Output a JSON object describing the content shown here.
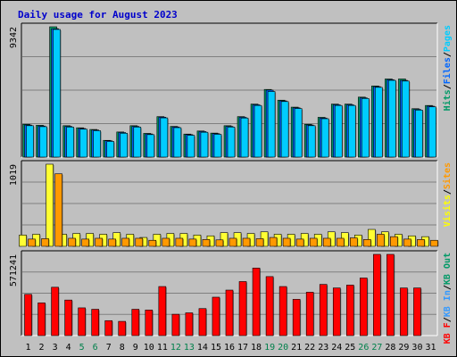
{
  "chart_data": {
    "type": "bar",
    "title": "Daily usage for August 2023",
    "categories": [
      "1",
      "2",
      "3",
      "4",
      "5",
      "6",
      "7",
      "8",
      "9",
      "10",
      "11",
      "12",
      "13",
      "14",
      "15",
      "16",
      "17",
      "18",
      "19",
      "20",
      "21",
      "22",
      "23",
      "24",
      "25",
      "26",
      "27",
      "28",
      "29",
      "30",
      "31"
    ],
    "weekend_days": [
      "5",
      "6",
      "12",
      "13",
      "19",
      "20",
      "26",
      "27"
    ],
    "panels": [
      {
        "id": "hits-files-pages",
        "ymax_label": "9342",
        "ylim": [
          0,
          9342
        ],
        "right_labels": [
          {
            "text": "Hits",
            "color": "#009966"
          },
          {
            "text": "/",
            "color": "#000000"
          },
          {
            "text": "Files",
            "color": "#0066ff"
          },
          {
            "text": "/",
            "color": "#000000"
          },
          {
            "text": "Pages",
            "color": "#00ccff"
          }
        ],
        "series": [
          {
            "name": "Hits",
            "color": "#009966",
            "values": [
              2350,
              2280,
              9342,
              2250,
              2100,
              1980,
              1200,
              1800,
              2250,
              1700,
              2900,
              2200,
              1650,
              1870,
              1720,
              2250,
              2900,
              3800,
              4850,
              4080,
              3580,
              2350,
              2850,
              3800,
              3800,
              4300,
              5100,
              5600,
              5600,
              3470,
              3700
            ]
          },
          {
            "name": "Files",
            "color": "#0066ff",
            "values": [
              2300,
              2230,
              9200,
              2200,
              2050,
              1940,
              1170,
              1760,
              2200,
              1660,
              2860,
              2160,
              1610,
              1830,
              1680,
              2200,
              2850,
              3750,
              4800,
              4030,
              3530,
              2300,
              2800,
              3750,
              3750,
              4250,
              5050,
              5550,
              5500,
              3420,
              3650
            ]
          },
          {
            "name": "Pages",
            "color": "#00ccff",
            "values": [
              2250,
              2180,
              9150,
              2150,
              2000,
              1890,
              1120,
              1710,
              2150,
              1610,
              2810,
              2110,
              1560,
              1780,
              1630,
              2150,
              2800,
              3700,
              4700,
              3980,
              3480,
              2250,
              2750,
              3700,
              3700,
              4200,
              5000,
              5500,
              5450,
              3370,
              3600
            ]
          }
        ]
      },
      {
        "id": "visits-sites",
        "ymax_label": "1019",
        "ylim": [
          0,
          1019
        ],
        "right_labels": [
          {
            "text": "Visits",
            "color": "#ffff00"
          },
          {
            "text": "/",
            "color": "#000000"
          },
          {
            "text": "Sites",
            "color": "#ff9900"
          }
        ],
        "series": [
          {
            "name": "Visits",
            "color": "#ffff33",
            "values": [
              140,
              150,
              1019,
              150,
              160,
              160,
              150,
              170,
              150,
              110,
              150,
              160,
              160,
              140,
              130,
              170,
              170,
              160,
              180,
              150,
              150,
              160,
              150,
              180,
              170,
              140,
              210,
              180,
              150,
              130,
              120
            ]
          },
          {
            "name": "Sites",
            "color": "#ff9900",
            "values": [
              90,
              95,
              900,
              100,
              90,
              100,
              90,
              100,
              100,
              75,
              100,
              100,
              90,
              85,
              80,
              100,
              100,
              95,
              110,
              100,
              90,
              100,
              100,
              100,
              105,
              85,
              150,
              120,
              90,
              85,
              75
            ]
          }
        ]
      },
      {
        "id": "kb",
        "ymax_label": "571241",
        "ylim": [
          0,
          571241
        ],
        "right_labels": [
          {
            "text": "KB F",
            "color": "#ff0000"
          },
          {
            "text": "/",
            "color": "#000000"
          },
          {
            "text": "KB In",
            "color": "#3399ff"
          },
          {
            "text": "/",
            "color": "#000000"
          },
          {
            "text": "KB Out",
            "color": "#009966"
          }
        ],
        "series": [
          {
            "name": "KB F",
            "color": "#ff0000",
            "values": [
              290000,
              230000,
              340000,
              250000,
              195000,
              185000,
              105000,
              100000,
              185000,
              180000,
              345000,
              150000,
              160000,
              190000,
              270000,
              320000,
              380000,
              475000,
              415000,
              345000,
              255000,
              305000,
              360000,
              335000,
              355000,
              405000,
              571241,
              571241,
              335000,
              335000,
              0
            ]
          }
        ]
      }
    ]
  }
}
